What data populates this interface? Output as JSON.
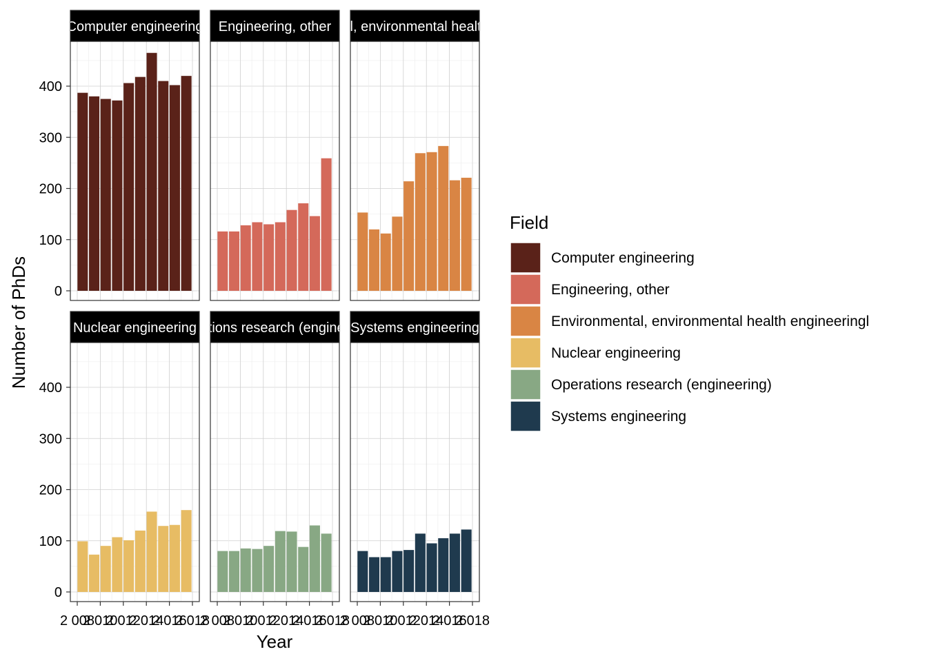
{
  "chart_data": {
    "type": "bar",
    "faceted": true,
    "xlabel": "Year",
    "ylabel": "Number of PhDs",
    "ylim": [
      0,
      500
    ],
    "y_ticks": [
      0,
      100,
      200,
      300,
      400
    ],
    "x_ticks": [
      2008,
      2010,
      2012,
      2014,
      2016,
      2018
    ],
    "x_tick_labels": [
      "2 008",
      "2 010",
      "2 012",
      "2 014",
      "2 016",
      "2 018"
    ],
    "grid": true,
    "x": [
      2008,
      2009,
      2010,
      2011,
      2012,
      2013,
      2014,
      2015,
      2016,
      2017
    ],
    "legend": {
      "title": "Field",
      "position": "right"
    },
    "series": [
      {
        "name": "Computer engineering",
        "strip_label": "Computer engineering",
        "color": "#5a2219",
        "values": [
          387,
          380,
          375,
          372,
          406,
          418,
          465,
          410,
          402,
          420
        ]
      },
      {
        "name": "Engineering, other",
        "strip_label": "Engineering, other",
        "color": "#d4695a",
        "values": [
          116,
          116,
          128,
          134,
          130,
          134,
          158,
          171,
          146,
          259
        ]
      },
      {
        "name": "Environmental, environmental health engineeringl",
        "strip_label": "Environmental, environmental health engineering",
        "color": "#d98544",
        "values": [
          153,
          120,
          112,
          145,
          214,
          269,
          271,
          283,
          216,
          221
        ]
      },
      {
        "name": "Nuclear engineering",
        "strip_label": "Nuclear engineering",
        "color": "#e7bc64",
        "values": [
          99,
          73,
          90,
          107,
          101,
          120,
          157,
          129,
          131,
          160
        ]
      },
      {
        "name": "Operations research (engineering)",
        "strip_label": "Operations research (engineering)",
        "color": "#88a884",
        "values": [
          80,
          80,
          85,
          84,
          90,
          119,
          118,
          88,
          130,
          114
        ]
      },
      {
        "name": "Systems engineering",
        "strip_label": "Systems engineering",
        "color": "#1f3a4e",
        "values": [
          80,
          68,
          68,
          80,
          82,
          114,
          95,
          105,
          114,
          122
        ]
      }
    ]
  }
}
